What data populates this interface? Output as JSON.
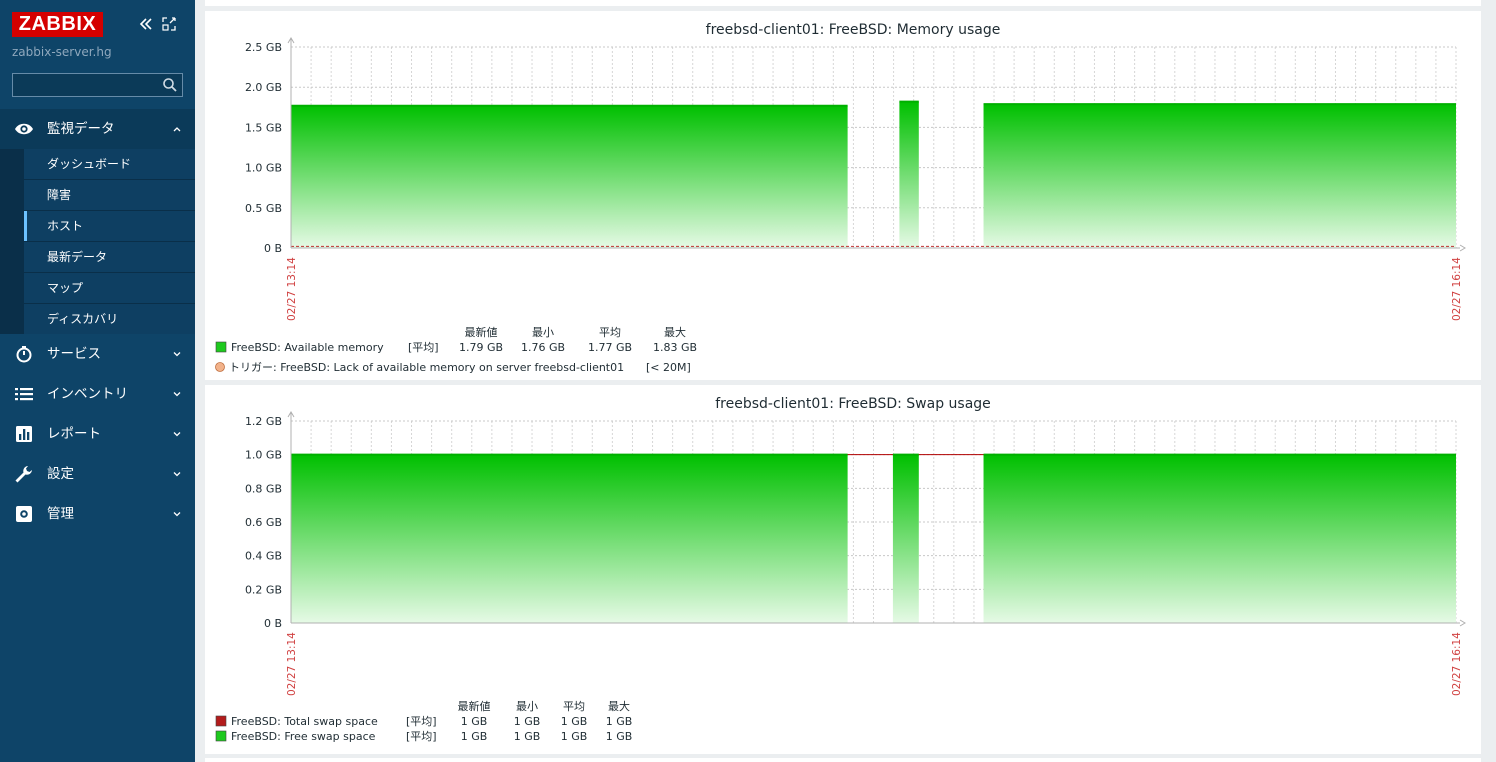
{
  "sidebar": {
    "logo": "ZABBIX",
    "server_name": "zabbix-server.hg",
    "search": {
      "value": "",
      "placeholder": ""
    },
    "menu": [
      {
        "label": "監視データ",
        "icon": "eye-icon",
        "expanded": true
      },
      {
        "label": "サービス",
        "icon": "stopwatch-icon"
      },
      {
        "label": "インベントリ",
        "icon": "list-icon"
      },
      {
        "label": "レポート",
        "icon": "bar-chart-icon"
      },
      {
        "label": "設定",
        "icon": "wrench-icon"
      },
      {
        "label": "管理",
        "icon": "gear-icon"
      }
    ],
    "submenu": [
      {
        "label": "ダッシュボード"
      },
      {
        "label": "障害"
      },
      {
        "label": "ホスト",
        "active": true
      },
      {
        "label": "最新データ"
      },
      {
        "label": "マップ"
      },
      {
        "label": "ディスカバリ"
      }
    ]
  },
  "graphs": [
    {
      "title": "freebsd-client01: FreeBSD: Memory usage",
      "chart_data": {
        "type": "area",
        "y_ticks": [
          "2.5 GB",
          "2.0 GB",
          "1.5 GB",
          "1.0 GB",
          "0.5 GB",
          "0 B"
        ],
        "ylim": [
          0,
          2.5
        ],
        "y_unit": "GB",
        "x_labels": [
          "02/27 13:14",
          "02/27 16:14"
        ],
        "series": [
          {
            "name": "FreeBSD: Available memory",
            "color": "#00c800",
            "x_segments": [
              {
                "from": "13:14",
                "to": "14:40",
                "value": 1.77
              },
              {
                "from": "14:48",
                "to": "14:51",
                "value": 1.82
              },
              {
                "from": "15:01",
                "to": "16:14",
                "value": 1.79
              }
            ]
          }
        ],
        "trigger_line": {
          "value": 0.02,
          "color": "#c03030"
        }
      },
      "legend": {
        "headers": [
          "最新値",
          "最小",
          "平均",
          "最大"
        ],
        "rows": [
          {
            "color": "#1ec91e",
            "name": "FreeBSD: Available memory",
            "func": "[平均]",
            "last": "1.79 GB",
            "min": "1.76 GB",
            "avg": "1.77 GB",
            "max": "1.83 GB"
          }
        ],
        "trigger": {
          "color": "#f2b28a",
          "text": "トリガー: FreeBSD: Lack of available memory on server freebsd-client01",
          "cond": "[< 20M]"
        }
      }
    },
    {
      "title": "freebsd-client01: FreeBSD: Swap usage",
      "chart_data": {
        "type": "area",
        "y_ticks": [
          "1.2 GB",
          "1.0 GB",
          "0.8 GB",
          "0.6 GB",
          "0.4 GB",
          "0.2 GB",
          "0 B"
        ],
        "ylim": [
          0,
          1.2
        ],
        "y_unit": "GB",
        "x_labels": [
          "02/27 13:14",
          "02/27 16:14"
        ],
        "series": [
          {
            "name": "FreeBSD: Total swap space",
            "color": "#b00000",
            "value": 1.0
          },
          {
            "name": "FreeBSD: Free swap space",
            "color": "#00c800",
            "x_segments": [
              {
                "from": "13:14",
                "to": "14:40",
                "value": 1.0
              },
              {
                "from": "14:47",
                "to": "14:51",
                "value": 1.0
              },
              {
                "from": "15:01",
                "to": "16:14",
                "value": 1.0
              }
            ]
          }
        ]
      },
      "legend": {
        "headers": [
          "最新値",
          "最小",
          "平均",
          "最大"
        ],
        "rows": [
          {
            "color": "#b31c1c",
            "name": "FreeBSD: Total swap space",
            "func": "[平均]",
            "last": "1 GB",
            "min": "1 GB",
            "avg": "1 GB",
            "max": "1 GB"
          },
          {
            "color": "#1ec91e",
            "name": "FreeBSD: Free swap space",
            "func": "[平均]",
            "last": "1 GB",
            "min": "1 GB",
            "avg": "1 GB",
            "max": "1 GB"
          }
        ]
      }
    }
  ]
}
